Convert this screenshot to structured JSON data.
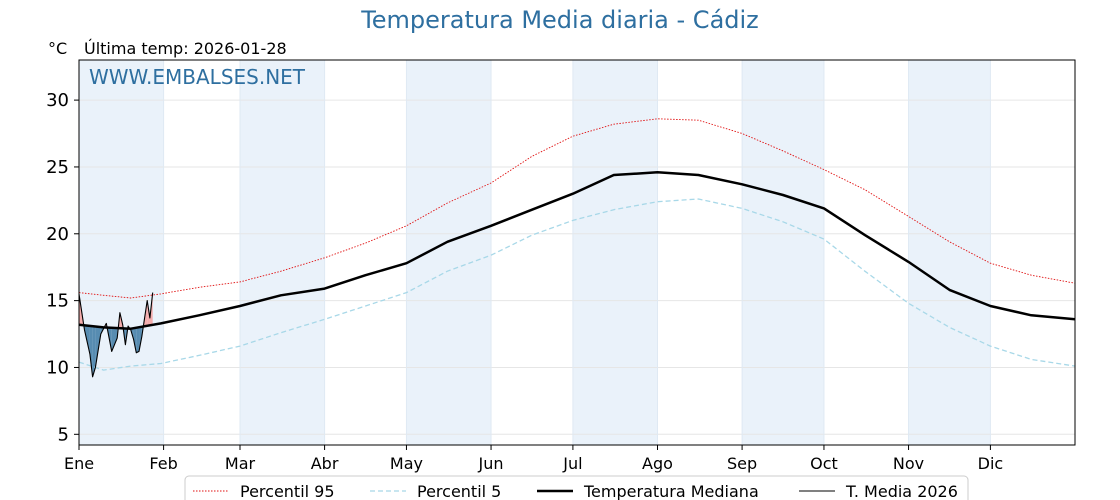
{
  "title": "Temperatura Media diaria - Cádiz",
  "unit_label": "°C",
  "last_temp_label": "Última temp: 2026-01-28",
  "watermark": "WWW.EMBALSES.NET",
  "colors": {
    "title": "#2e6fa0",
    "watermark": "#2e6fa0",
    "p95": "#e01010",
    "p5": "#a8d8e8",
    "median": "#000000",
    "current": "#000000",
    "above_fill": "#f4a9a9",
    "below_fill": "#4f86ad",
    "month_band": "#eaf2fa"
  },
  "chart_data": {
    "type": "line",
    "ylim": [
      4.2,
      33
    ],
    "yticks": [
      5,
      10,
      15,
      20,
      25,
      30
    ],
    "xlim": [
      1,
      366
    ],
    "month_labels": [
      "Ene",
      "Feb",
      "Mar",
      "Abr",
      "May",
      "Jun",
      "Jul",
      "Ago",
      "Sep",
      "Oct",
      "Nov",
      "Dic"
    ],
    "month_start_days": [
      1,
      32,
      60,
      91,
      121,
      152,
      182,
      213,
      244,
      274,
      305,
      335
    ],
    "grid": true,
    "legend_position": "bottom",
    "series": [
      {
        "name": "Percentil 95",
        "style": "dotted-thin",
        "days": [
          1,
          10,
          20,
          31,
          45,
          60,
          75,
          91,
          106,
          121,
          136,
          152,
          167,
          182,
          197,
          213,
          228,
          244,
          259,
          274,
          289,
          305,
          320,
          335,
          350,
          366
        ],
        "values": [
          15.6,
          15.4,
          15.2,
          15.5,
          16.0,
          16.4,
          17.2,
          18.2,
          19.3,
          20.6,
          22.3,
          23.8,
          25.8,
          27.3,
          28.2,
          28.6,
          28.5,
          27.5,
          26.2,
          24.8,
          23.3,
          21.3,
          19.4,
          17.8,
          16.9,
          16.3
        ]
      },
      {
        "name": "Percentil 5",
        "style": "dashed",
        "days": [
          1,
          10,
          20,
          31,
          45,
          60,
          75,
          91,
          106,
          121,
          136,
          152,
          167,
          182,
          197,
          213,
          228,
          244,
          259,
          274,
          289,
          305,
          320,
          335,
          350,
          366
        ],
        "values": [
          10.4,
          9.8,
          10.1,
          10.3,
          10.9,
          11.6,
          12.6,
          13.6,
          14.6,
          15.6,
          17.2,
          18.4,
          19.9,
          21.0,
          21.8,
          22.4,
          22.6,
          21.9,
          20.9,
          19.6,
          17.2,
          14.8,
          13.0,
          11.6,
          10.6,
          10.1
        ]
      },
      {
        "name": "Temperatura Mediana",
        "style": "bold",
        "days": [
          1,
          10,
          20,
          31,
          45,
          60,
          75,
          91,
          106,
          121,
          136,
          152,
          167,
          182,
          197,
          213,
          228,
          244,
          259,
          274,
          289,
          305,
          320,
          335,
          350,
          366
        ],
        "values": [
          13.2,
          13.0,
          12.9,
          13.3,
          13.9,
          14.6,
          15.4,
          15.9,
          16.9,
          17.8,
          19.4,
          20.6,
          21.8,
          23.0,
          24.4,
          24.6,
          24.4,
          23.7,
          22.9,
          21.9,
          19.9,
          17.9,
          15.8,
          14.6,
          13.9,
          13.6
        ]
      },
      {
        "name": "T. Media 2026",
        "style": "thin",
        "days": [
          1,
          3,
          5,
          6,
          7,
          9,
          11,
          13,
          15,
          16,
          17,
          18,
          19,
          20,
          21,
          22,
          23,
          24,
          26,
          27,
          28
        ],
        "values": [
          15.5,
          12.8,
          11.0,
          9.3,
          10.0,
          12.5,
          13.3,
          11.2,
          12.2,
          14.1,
          13.2,
          11.7,
          13.1,
          12.8,
          12.1,
          11.1,
          11.2,
          12.3,
          15.0,
          13.7,
          15.6
        ]
      }
    ]
  }
}
